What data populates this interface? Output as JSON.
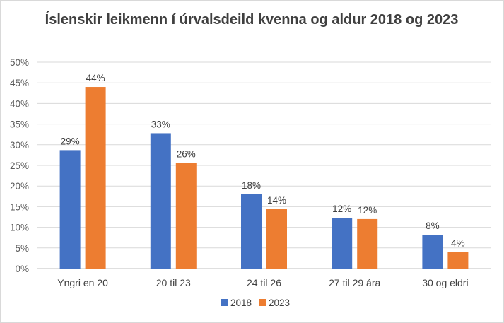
{
  "chart_data": {
    "type": "bar",
    "title": "Íslenskir leikmenn í úrvalsdeild kvenna og aldur 2018 og 2023",
    "categories": [
      "Yngri en 20",
      "20 til 23",
      "24 til 26",
      "27 til 29 ára",
      "30 og eldri"
    ],
    "series": [
      {
        "name": "2018",
        "values": [
          28.7,
          32.8,
          18.0,
          12.3,
          8.2
        ],
        "labels": [
          "29%",
          "33%",
          "18%",
          "12%",
          "8%"
        ],
        "color": "#4472c4"
      },
      {
        "name": "2023",
        "values": [
          44.0,
          25.6,
          14.4,
          12.0,
          4.0
        ],
        "labels": [
          "44%",
          "26%",
          "14%",
          "12%",
          "4%"
        ],
        "color": "#ed7d31"
      }
    ],
    "ylim": [
      0,
      50
    ],
    "yticks": [
      "0%",
      "5%",
      "10%",
      "15%",
      "20%",
      "25%",
      "30%",
      "35%",
      "40%",
      "45%",
      "50%"
    ],
    "grid": true,
    "legend": "bottom-center"
  }
}
